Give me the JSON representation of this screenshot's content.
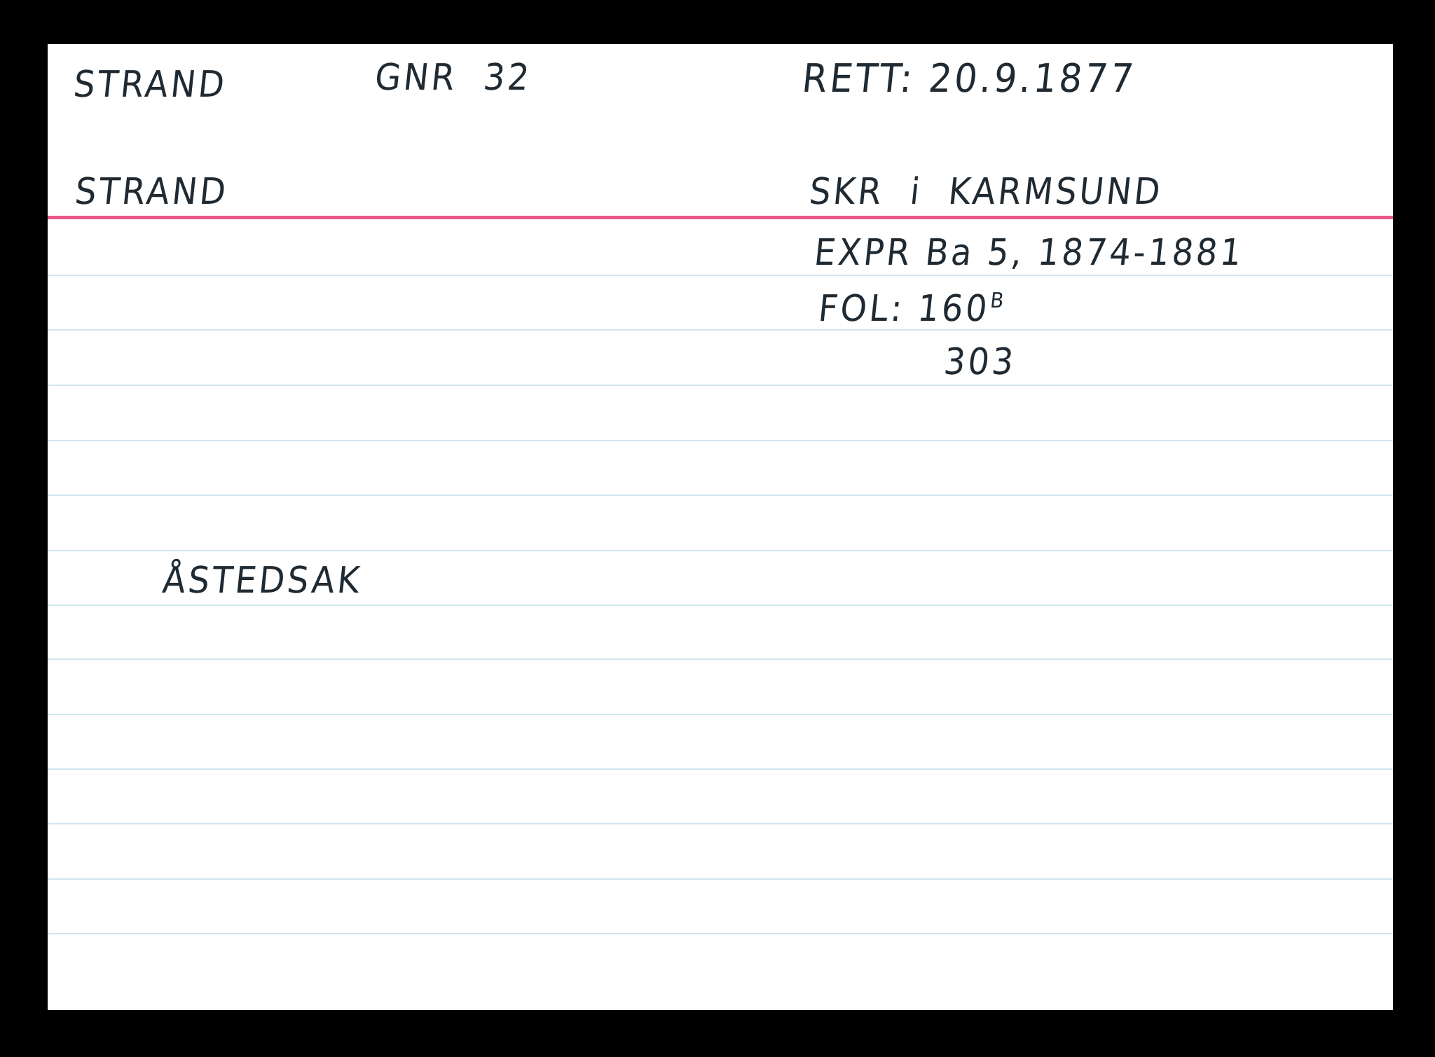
{
  "card": {
    "header": {
      "place": "STRAND",
      "gnr": "GNR  32",
      "rett": "RETT: 20.9.1877",
      "farm": "STRAND",
      "court": "SKR  i  KARMSUND"
    },
    "reference": {
      "source": "EXPR Ba 5, 1874-1881",
      "folio_label": "FOL: 160",
      "folio_suffix": "B",
      "folio_extra": "303"
    },
    "case_type": "ÅSTEDSAK"
  },
  "colors": {
    "header_rule": "#e8588a",
    "line_rule": "#cfe6ee",
    "ink": "#1f2a33"
  }
}
